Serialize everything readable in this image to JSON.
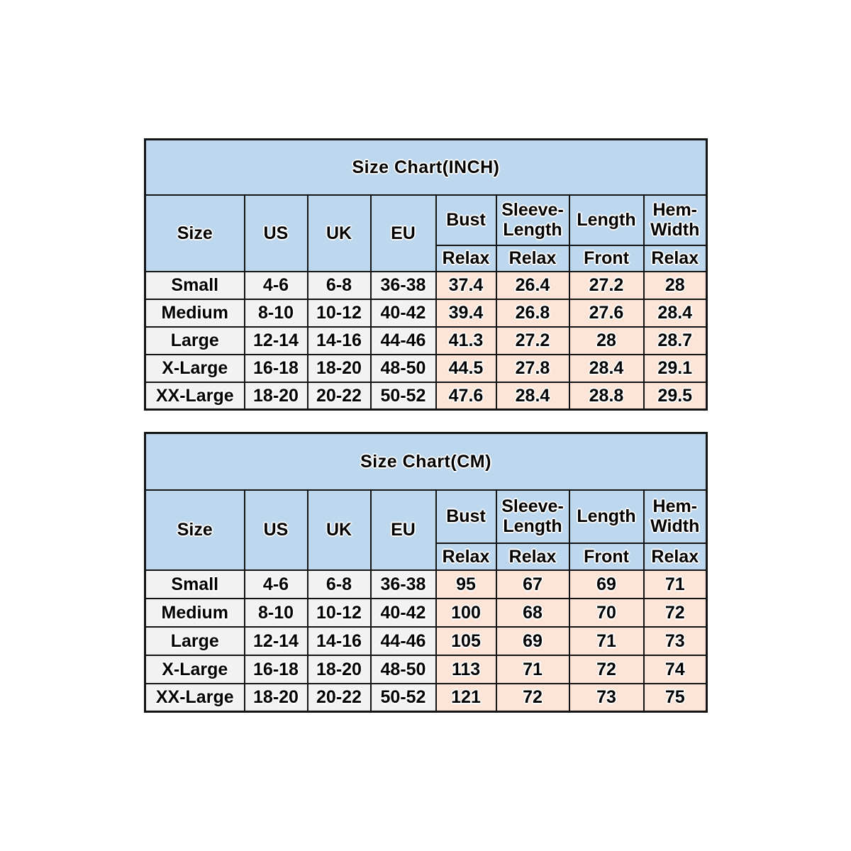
{
  "colors": {
    "header_bg": "#bdd7ee",
    "label_cell_bg": "#f2f2f2",
    "value_cell_bg": "#fce4d6",
    "border": "#141414",
    "text": "#000000",
    "page_bg": "#ffffff"
  },
  "tables": [
    {
      "title": "Size Chart(INCH)",
      "columns": [
        "Size",
        "US",
        "UK",
        "EU",
        "Bust",
        "Sleeve-Length",
        "Length",
        "Hem-Width"
      ],
      "sub_headers": [
        "Relax",
        "Relax",
        "Front",
        "Relax"
      ],
      "rows": [
        [
          "Small",
          "4-6",
          "6-8",
          "36-38",
          "37.4",
          "26.4",
          "27.2",
          "28"
        ],
        [
          "Medium",
          "8-10",
          "10-12",
          "40-42",
          "39.4",
          "26.8",
          "27.6",
          "28.4"
        ],
        [
          "Large",
          "12-14",
          "14-16",
          "44-46",
          "41.3",
          "27.2",
          "28",
          "28.7"
        ],
        [
          "X-Large",
          "16-18",
          "18-20",
          "48-50",
          "44.5",
          "27.8",
          "28.4",
          "29.1"
        ],
        [
          "XX-Large",
          "18-20",
          "20-22",
          "50-52",
          "47.6",
          "28.4",
          "28.8",
          "29.5"
        ]
      ]
    },
    {
      "title": "Size Chart(CM)",
      "columns": [
        "Size",
        "US",
        "UK",
        "EU",
        "Bust",
        "Sleeve-Length",
        "Length",
        "Hem-Width"
      ],
      "sub_headers": [
        "Relax",
        "Relax",
        "Front",
        "Relax"
      ],
      "rows": [
        [
          "Small",
          "4-6",
          "6-8",
          "36-38",
          "95",
          "67",
          "69",
          "71"
        ],
        [
          "Medium",
          "8-10",
          "10-12",
          "40-42",
          "100",
          "68",
          "70",
          "72"
        ],
        [
          "Large",
          "12-14",
          "14-16",
          "44-46",
          "105",
          "69",
          "71",
          "73"
        ],
        [
          "X-Large",
          "16-18",
          "18-20",
          "48-50",
          "113",
          "71",
          "72",
          "74"
        ],
        [
          "XX-Large",
          "18-20",
          "20-22",
          "50-52",
          "121",
          "72",
          "73",
          "75"
        ]
      ]
    }
  ]
}
